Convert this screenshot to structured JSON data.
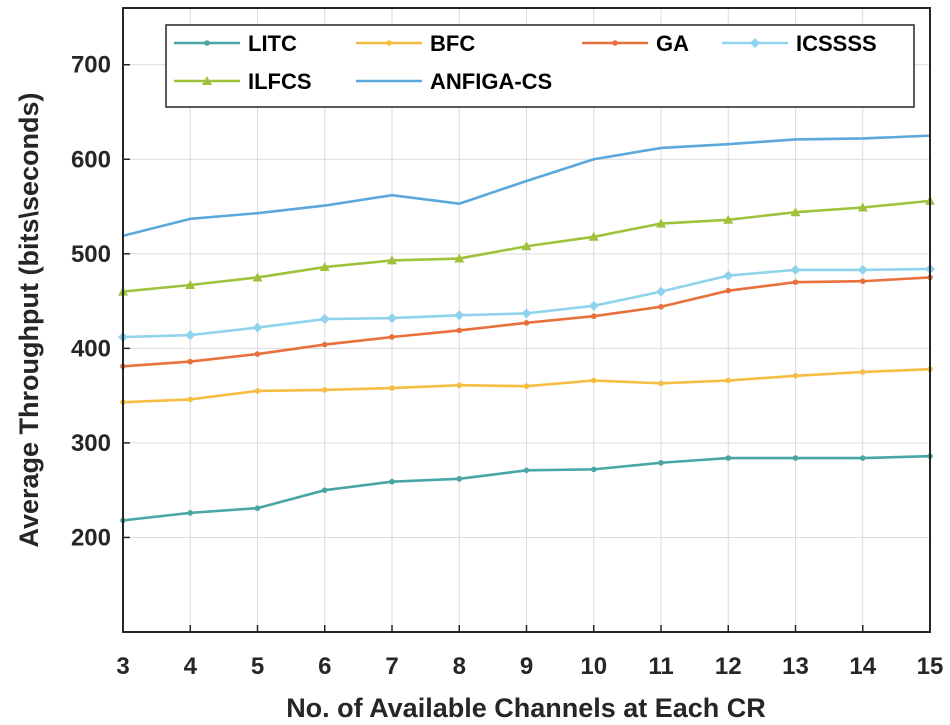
{
  "chart_data": {
    "type": "line",
    "xlabel": "No. of Available Channels at Each CR",
    "ylabel": "Average Throughput (bits\\seconds)",
    "x": [
      3,
      4,
      5,
      6,
      7,
      8,
      9,
      10,
      11,
      12,
      13,
      14,
      15
    ],
    "xlim": [
      3,
      15
    ],
    "ylim": [
      100,
      760
    ],
    "yticks": [
      200,
      300,
      400,
      500,
      600,
      700
    ],
    "grid": true,
    "legend_position": "top",
    "series": [
      {
        "name": "LITC",
        "color": "#4aa6a6",
        "marker": "dot",
        "values": [
          218,
          226,
          231,
          250,
          259,
          262,
          271,
          272,
          279,
          284,
          284,
          284,
          286
        ]
      },
      {
        "name": "BFC",
        "color": "#f5bd42",
        "marker": "dot",
        "values": [
          343,
          346,
          355,
          356,
          358,
          361,
          360,
          366,
          363,
          366,
          371,
          375,
          378
        ]
      },
      {
        "name": "GA",
        "color": "#e8703c",
        "marker": "dot",
        "values": [
          381,
          386,
          394,
          404,
          412,
          419,
          427,
          434,
          444,
          461,
          470,
          471,
          475
        ]
      },
      {
        "name": "ICSSSS",
        "color": "#8fd3ec",
        "marker": "diamond",
        "values": [
          412,
          414,
          422,
          431,
          432,
          435,
          437,
          445,
          460,
          477,
          483,
          483,
          484
        ]
      },
      {
        "name": "ILFCS",
        "color": "#9fc23c",
        "marker": "triangle",
        "values": [
          460,
          467,
          475,
          486,
          493,
          495,
          508,
          518,
          532,
          536,
          544,
          549,
          556
        ]
      },
      {
        "name": "ANFIGA-CS",
        "color": "#5aa8dc",
        "marker": "none",
        "values": [
          519,
          537,
          543,
          551,
          562,
          553,
          577,
          600,
          612,
          616,
          621,
          622,
          625
        ]
      }
    ]
  }
}
